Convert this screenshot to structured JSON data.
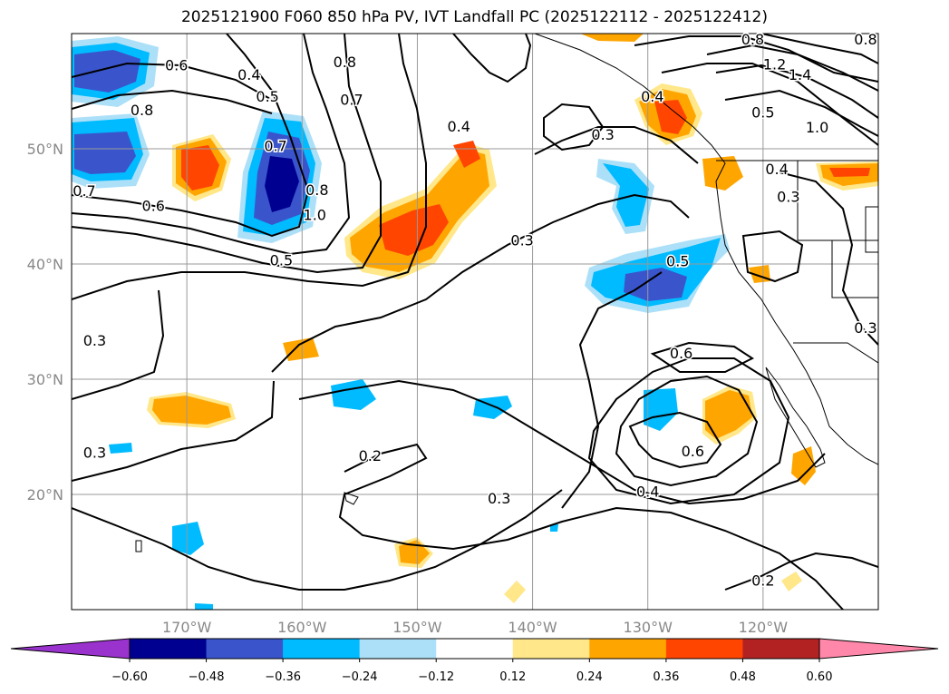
{
  "chart_data": {
    "type": "contour-map",
    "title": "2025121900 F060 850 hPa PV, IVT Landfall PC (2025122112 - 2025122412)",
    "lon_range": [
      -180,
      -110
    ],
    "lat_range": [
      10,
      60
    ],
    "grid": true,
    "lon_ticks": [
      {
        "value": -170,
        "label": "170°W"
      },
      {
        "value": -160,
        "label": "160°W"
      },
      {
        "value": -150,
        "label": "150°W"
      },
      {
        "value": -140,
        "label": "140°W"
      },
      {
        "value": -130,
        "label": "130°W"
      },
      {
        "value": -120,
        "label": "120°W"
      }
    ],
    "lat_ticks": [
      {
        "value": 20,
        "label": "20°N"
      },
      {
        "value": 30,
        "label": "30°N"
      },
      {
        "value": 40,
        "label": "40°N"
      },
      {
        "value": 50,
        "label": "50°N"
      }
    ],
    "colorbar": {
      "extend": "both",
      "ticks": [
        "−0.60",
        "−0.48",
        "−0.36",
        "−0.24",
        "−0.12",
        "0.12",
        "0.24",
        "0.36",
        "0.48",
        "0.60"
      ],
      "colors": [
        "#9a32cd",
        "#000090",
        "#3a55cc",
        "#00bbff",
        "#ace0f8",
        "#ffffff",
        "#ffe78a",
        "#ffa500",
        "#ff4500",
        "#b22222",
        "#ff88aa"
      ]
    },
    "contour_labels": [
      {
        "text": "0.6",
        "lon": -170.9,
        "lat": 56.8
      },
      {
        "text": "0.8",
        "lon": -173.9,
        "lat": 52.9
      },
      {
        "text": "0.7",
        "lon": -178.9,
        "lat": 45.9
      },
      {
        "text": "0.6",
        "lon": -172.9,
        "lat": 44.6
      },
      {
        "text": "0.5",
        "lon": -161.8,
        "lat": 39.9
      },
      {
        "text": "0.4",
        "lon": -164.6,
        "lat": 56.0
      },
      {
        "text": "0.5",
        "lon": -163.0,
        "lat": 54.1
      },
      {
        "text": "0.7",
        "lon": -162.3,
        "lat": 49.8
      },
      {
        "text": "0.8",
        "lon": -158.7,
        "lat": 46.0
      },
      {
        "text": "1.0",
        "lon": -158.9,
        "lat": 43.8
      },
      {
        "text": "0.8",
        "lon": -156.3,
        "lat": 57.1
      },
      {
        "text": "0.7",
        "lon": -155.7,
        "lat": 53.8
      },
      {
        "text": "0.4",
        "lon": -146.4,
        "lat": 51.5
      },
      {
        "text": "0.3",
        "lon": -133.9,
        "lat": 50.8
      },
      {
        "text": "0.3",
        "lon": -140.9,
        "lat": 41.6
      },
      {
        "text": "0.5",
        "lon": -127.4,
        "lat": 39.8
      },
      {
        "text": "0.4",
        "lon": -129.6,
        "lat": 54.1
      },
      {
        "text": "0.5",
        "lon": -120.0,
        "lat": 52.7
      },
      {
        "text": "0.4",
        "lon": -118.8,
        "lat": 47.8
      },
      {
        "text": "0.3",
        "lon": -117.8,
        "lat": 45.4
      },
      {
        "text": "1.2",
        "lon": -119.0,
        "lat": 56.9
      },
      {
        "text": "1.4",
        "lon": -116.8,
        "lat": 56.0
      },
      {
        "text": "1.0",
        "lon": -115.3,
        "lat": 51.4
      },
      {
        "text": "0.8",
        "lon": -120.9,
        "lat": 60.0
      },
      {
        "text": "0.8",
        "lon": -110.8,
        "lat": 60.0
      },
      {
        "text": "0.3",
        "lon": -111.0,
        "lat": 34.0
      },
      {
        "text": "0.6",
        "lon": -127.1,
        "lat": 31.8
      },
      {
        "text": "0.6",
        "lon": -126.1,
        "lat": 23.3
      },
      {
        "text": "0.4",
        "lon": -130.0,
        "lat": 19.8
      },
      {
        "text": "0.3",
        "lon": -142.9,
        "lat": 19.2
      },
      {
        "text": "0.2",
        "lon": -154.1,
        "lat": 22.9
      },
      {
        "text": "0.3",
        "lon": -178.0,
        "lat": 32.9
      },
      {
        "text": "0.3",
        "lon": -178.0,
        "lat": 23.2
      },
      {
        "text": "0.2",
        "lon": -120.0,
        "lat": 12.1
      }
    ]
  }
}
